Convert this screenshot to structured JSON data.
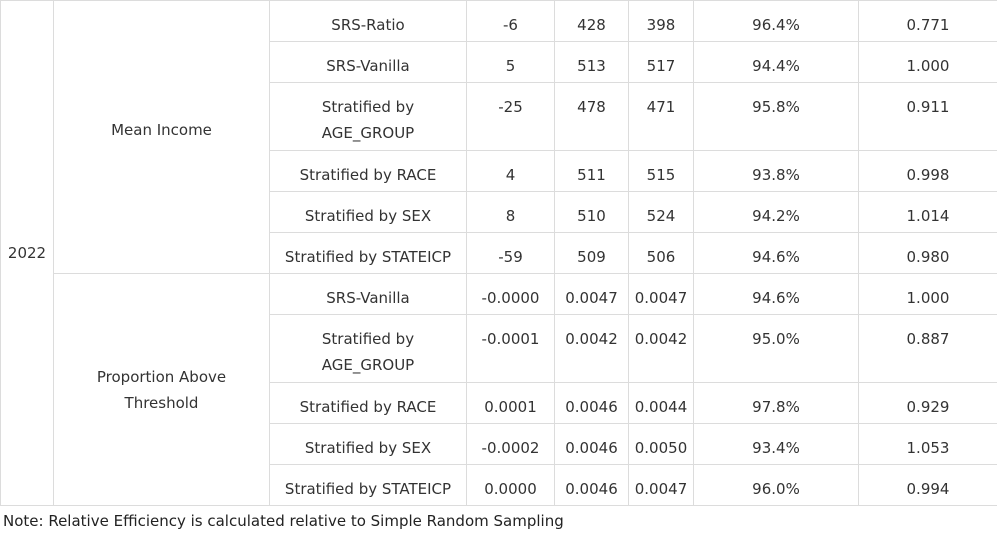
{
  "year": "2022",
  "groups": [
    {
      "label": "Mean Income",
      "rows": [
        {
          "method": "SRS-Ratio",
          "bias": "-6",
          "c3": "428",
          "c4": "398",
          "coverage": "96.4%",
          "efficiency": "0.771"
        },
        {
          "method": "SRS-Vanilla",
          "bias": "5",
          "c3": "513",
          "c4": "517",
          "coverage": "94.4%",
          "efficiency": "1.000"
        },
        {
          "method": "Stratified by AGE_GROUP",
          "bias": "-25",
          "c3": "478",
          "c4": "471",
          "coverage": "95.8%",
          "efficiency": "0.911"
        },
        {
          "method": "Stratified by RACE",
          "bias": "4",
          "c3": "511",
          "c4": "515",
          "coverage": "93.8%",
          "efficiency": "0.998"
        },
        {
          "method": "Stratified by SEX",
          "bias": "8",
          "c3": "510",
          "c4": "524",
          "coverage": "94.2%",
          "efficiency": "1.014"
        },
        {
          "method": "Stratified by STATEICP",
          "bias": "-59",
          "c3": "509",
          "c4": "506",
          "coverage": "94.6%",
          "efficiency": "0.980"
        }
      ]
    },
    {
      "label": "Proportion Above Threshold",
      "rows": [
        {
          "method": "SRS-Vanilla",
          "bias": "-0.0000",
          "c3": "0.0047",
          "c4": "0.0047",
          "coverage": "94.6%",
          "efficiency": "1.000"
        },
        {
          "method": "Stratified by AGE_GROUP",
          "bias": "-0.0001",
          "c3": "0.0042",
          "c4": "0.0042",
          "coverage": "95.0%",
          "efficiency": "0.887"
        },
        {
          "method": "Stratified by RACE",
          "bias": "0.0001",
          "c3": "0.0046",
          "c4": "0.0044",
          "coverage": "97.8%",
          "efficiency": "0.929"
        },
        {
          "method": "Stratified by SEX",
          "bias": "-0.0002",
          "c3": "0.0046",
          "c4": "0.0050",
          "coverage": "93.4%",
          "efficiency": "1.053"
        },
        {
          "method": "Stratified by STATEICP",
          "bias": "0.0000",
          "c3": "0.0046",
          "c4": "0.0047",
          "coverage": "96.0%",
          "efficiency": "0.994"
        }
      ]
    }
  ],
  "note": "Note: Relative Efficiency is calculated relative to Simple Random Sampling"
}
